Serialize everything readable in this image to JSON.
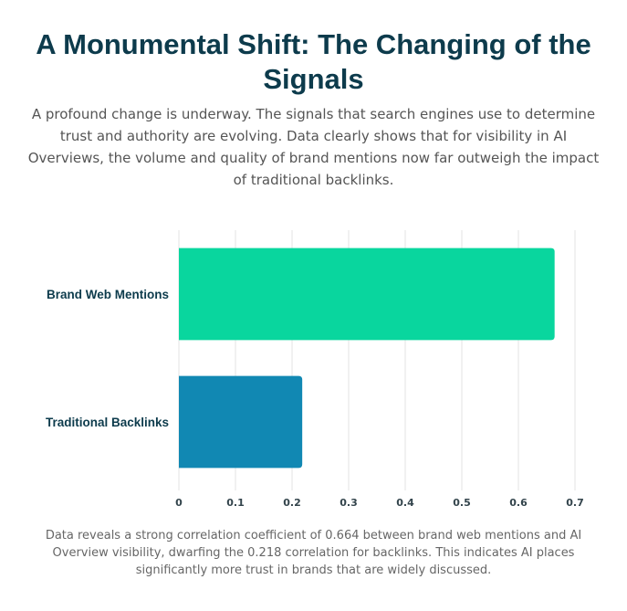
{
  "page": {
    "title": "A Monumental Shift: The Changing of the Signals",
    "intro": "A profound change is underway. The signals that search engines use to determine trust and authority are evolving. Data clearly shows that for visibility in AI Overviews, the volume and quality of brand mentions now far outweigh the impact of traditional backlinks.",
    "caption": "Data reveals a strong correlation coefficient of 0.664 between brand web mentions and AI Overview visibility, dwarfing the 0.218 correlation for backlinks. This indicates AI places significantly more trust in brands that are widely discussed."
  },
  "chart_data": {
    "type": "bar",
    "orientation": "horizontal",
    "categories": [
      "Brand Web Mentions",
      "Traditional Backlinks"
    ],
    "values": [
      0.664,
      0.218
    ],
    "colors": [
      "#09d69e",
      "#1188b3"
    ],
    "xlim": [
      0,
      0.7
    ],
    "xticks": [
      "0",
      "0.1",
      "0.2",
      "0.3",
      "0.4",
      "0.5",
      "0.6",
      "0.7"
    ],
    "grid": true,
    "legend": false,
    "title": "",
    "xlabel": "",
    "ylabel": ""
  }
}
